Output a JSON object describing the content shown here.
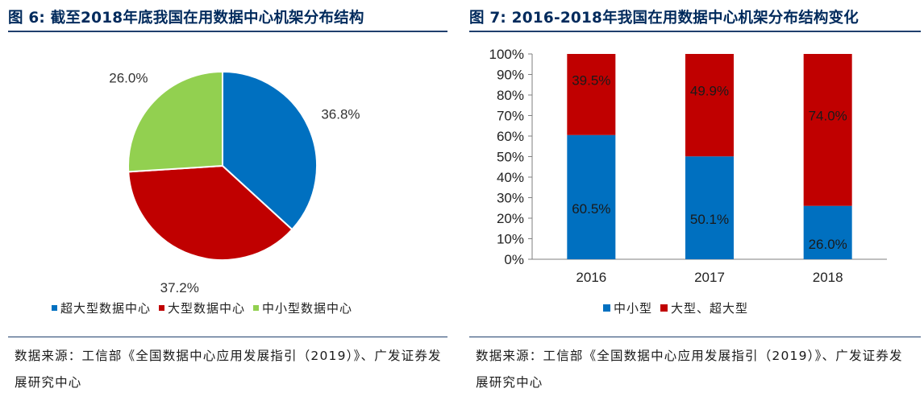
{
  "left_panel": {
    "title": "图 6: 截至2018年底我国在用数据中心机架分布结构",
    "source": "数据来源：工信部《全国数据中心应用发展指引（2019）》、广发证券发展研究中心"
  },
  "right_panel": {
    "title": "图 7: 2016-2018年我国在用数据中心机架分布结构变化",
    "source": "数据来源：工信部《全国数据中心应用发展指引（2019）》、广发证券发展研究中心"
  },
  "chart_data": [
    {
      "type": "pie",
      "title": "",
      "slices": [
        {
          "label": "超大型数据中心",
          "value": 36.8,
          "value_label": "36.8%",
          "color": "#0070c0"
        },
        {
          "label": "大型数据中心",
          "value": 37.2,
          "value_label": "37.2%",
          "color": "#c00000"
        },
        {
          "label": "中小型数据中心",
          "value": 26.0,
          "value_label": "26.0%",
          "color": "#92d050"
        }
      ],
      "start_angle_deg": 0,
      "direction": "clockwise",
      "legend_position": "bottom"
    },
    {
      "type": "bar",
      "stacked": "percent",
      "categories": [
        "2016",
        "2017",
        "2018"
      ],
      "series": [
        {
          "name": "中小型",
          "values": [
            60.5,
            50.1,
            26.0
          ],
          "value_labels": [
            "60.5%",
            "50.1%",
            "26.0%"
          ],
          "color": "#0070c0"
        },
        {
          "name": "大型、超大型",
          "values": [
            39.5,
            49.9,
            74.0
          ],
          "value_labels": [
            "39.5%",
            "49.9%",
            "74.0%"
          ],
          "color": "#c00000"
        }
      ],
      "ylim": [
        0,
        100
      ],
      "yticks": [
        "0%",
        "10%",
        "20%",
        "30%",
        "40%",
        "50%",
        "60%",
        "70%",
        "80%",
        "90%",
        "100%"
      ],
      "xlabel": "",
      "ylabel": "",
      "grid": false,
      "legend_position": "bottom"
    }
  ]
}
